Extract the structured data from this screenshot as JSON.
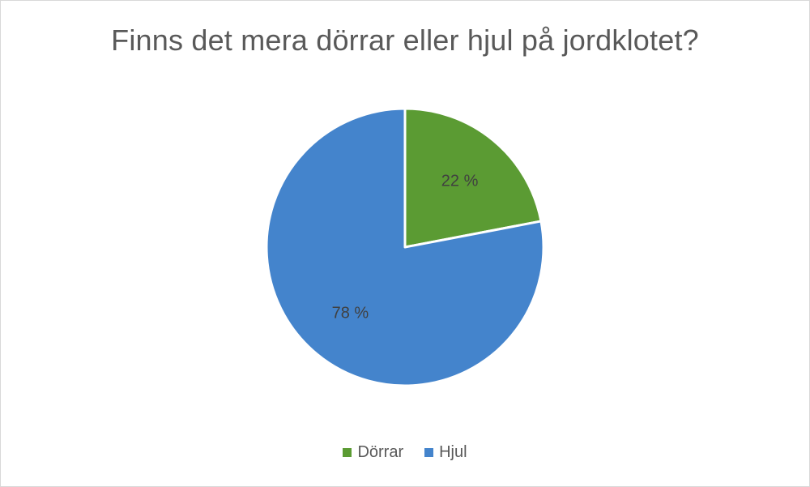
{
  "chart_data": {
    "type": "pie",
    "title": "Finns det mera dörrar eller hjul på jordklotet?",
    "categories": [
      "Dörrar",
      "Hjul"
    ],
    "values": [
      22,
      78
    ],
    "data_labels": [
      "22 %",
      "78 %"
    ],
    "colors": [
      "#5B9B33",
      "#4484CC"
    ],
    "legend_position": "bottom"
  }
}
